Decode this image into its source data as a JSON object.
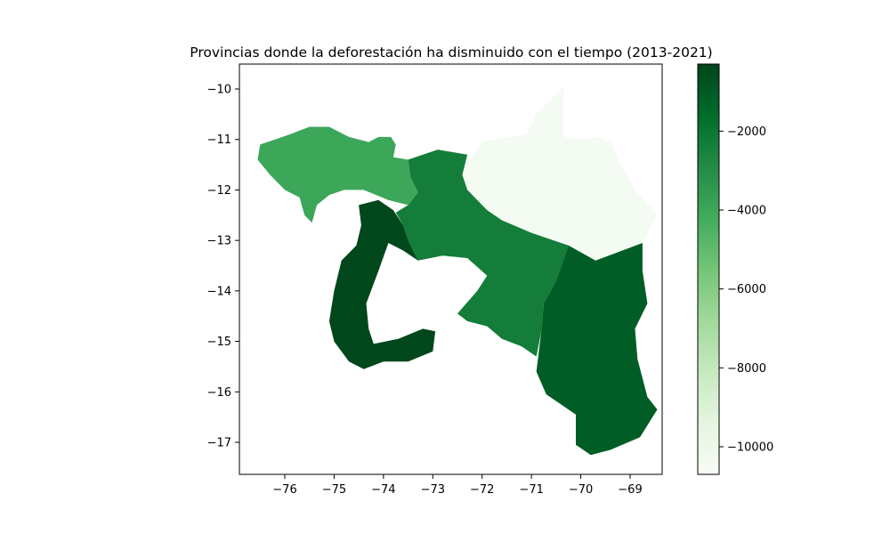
{
  "chart_data": {
    "type": "choropleth",
    "title": "Provincias donde la deforestación ha disminuido con el tiempo (2013-2021)",
    "xlabel": "",
    "ylabel": "",
    "x_ticks": [
      -76,
      -75,
      -74,
      -73,
      -72,
      -71,
      -70,
      -69
    ],
    "y_ticks": [
      -10,
      -11,
      -12,
      -13,
      -14,
      -15,
      -16,
      -17
    ],
    "x_range": [
      -76.9,
      -68.4
    ],
    "y_range": [
      -17.7,
      -9.5
    ],
    "x_tick_labels": [
      "−76",
      "−75",
      "−74",
      "−73",
      "−72",
      "−71",
      "−70",
      "−69"
    ],
    "y_tick_labels": [
      "−10",
      "−11",
      "−12",
      "−13",
      "−14",
      "−15",
      "−16",
      "−17"
    ],
    "colorbar": {
      "colormap": "Greens_r",
      "vmin": -10700,
      "vmax": -300,
      "ticks": [
        -2000,
        -4000,
        -6000,
        -8000,
        -10000
      ],
      "tick_labels": [
        "−2000",
        "−4000",
        "−6000",
        "−8000",
        "−10000"
      ]
    },
    "regions": [
      {
        "id": "region-northwest",
        "value": -4000,
        "outline": [
          [
            -76.5,
            -11.1
          ],
          [
            -76.2,
            -11.0
          ],
          [
            -75.9,
            -10.9
          ],
          [
            -75.5,
            -10.75
          ],
          [
            -75.1,
            -10.75
          ],
          [
            -74.7,
            -10.95
          ],
          [
            -74.3,
            -11.05
          ],
          [
            -74.1,
            -10.95
          ],
          [
            -73.85,
            -10.95
          ],
          [
            -73.75,
            -11.1
          ],
          [
            -73.8,
            -11.35
          ],
          [
            -73.5,
            -11.4
          ],
          [
            -73.45,
            -11.75
          ],
          [
            -73.3,
            -12.05
          ],
          [
            -73.5,
            -12.3
          ],
          [
            -73.9,
            -12.2
          ],
          [
            -74.4,
            -12.0
          ],
          [
            -74.8,
            -12.0
          ],
          [
            -75.1,
            -12.1
          ],
          [
            -75.35,
            -12.3
          ],
          [
            -75.45,
            -12.65
          ],
          [
            -75.6,
            -12.5
          ],
          [
            -75.7,
            -12.15
          ],
          [
            -76.0,
            -12.0
          ],
          [
            -76.3,
            -11.7
          ],
          [
            -76.55,
            -11.4
          ]
        ]
      },
      {
        "id": "region-east-north",
        "value": -10500,
        "outline": [
          [
            -72.0,
            -11.05
          ],
          [
            -71.1,
            -10.9
          ],
          [
            -70.9,
            -10.5
          ],
          [
            -70.5,
            -10.1
          ],
          [
            -70.35,
            -9.95
          ],
          [
            -70.35,
            -10.95
          ],
          [
            -70.05,
            -11.0
          ],
          [
            -69.7,
            -10.95
          ],
          [
            -69.4,
            -11.05
          ],
          [
            -69.2,
            -11.5
          ],
          [
            -68.9,
            -12.0
          ],
          [
            -68.45,
            -12.5
          ],
          [
            -68.75,
            -13.05
          ],
          [
            -69.7,
            -13.4
          ],
          [
            -70.25,
            -13.1
          ],
          [
            -71.0,
            -12.85
          ],
          [
            -71.6,
            -12.6
          ],
          [
            -71.9,
            -12.4
          ],
          [
            -72.3,
            -12.0
          ],
          [
            -72.4,
            -11.6
          ]
        ]
      },
      {
        "id": "region-central",
        "value": -2300,
        "outline": [
          [
            -73.5,
            -11.4
          ],
          [
            -72.9,
            -11.2
          ],
          [
            -72.3,
            -11.3
          ],
          [
            -72.4,
            -11.7
          ],
          [
            -72.3,
            -12.0
          ],
          [
            -71.9,
            -12.4
          ],
          [
            -71.6,
            -12.6
          ],
          [
            -71.0,
            -12.85
          ],
          [
            -70.25,
            -13.1
          ],
          [
            -70.5,
            -13.8
          ],
          [
            -70.75,
            -14.25
          ],
          [
            -70.8,
            -14.8
          ],
          [
            -70.9,
            -15.3
          ],
          [
            -71.2,
            -15.1
          ],
          [
            -71.6,
            -14.95
          ],
          [
            -71.9,
            -14.7
          ],
          [
            -72.3,
            -14.6
          ],
          [
            -72.5,
            -14.45
          ],
          [
            -72.1,
            -14.0
          ],
          [
            -71.9,
            -13.7
          ],
          [
            -72.3,
            -13.35
          ],
          [
            -72.8,
            -13.3
          ],
          [
            -73.3,
            -13.4
          ],
          [
            -73.5,
            -13.0
          ],
          [
            -73.6,
            -12.7
          ],
          [
            -73.75,
            -12.45
          ],
          [
            -73.5,
            -12.3
          ],
          [
            -73.3,
            -12.05
          ],
          [
            -73.45,
            -11.75
          ]
        ]
      },
      {
        "id": "region-southeast",
        "value": -1100,
        "outline": [
          [
            -70.25,
            -13.1
          ],
          [
            -69.7,
            -13.4
          ],
          [
            -68.75,
            -13.05
          ],
          [
            -68.75,
            -13.6
          ],
          [
            -68.65,
            -14.25
          ],
          [
            -68.9,
            -14.75
          ],
          [
            -68.85,
            -15.35
          ],
          [
            -68.65,
            -16.1
          ],
          [
            -68.45,
            -16.35
          ],
          [
            -68.8,
            -16.9
          ],
          [
            -69.4,
            -17.15
          ],
          [
            -69.8,
            -17.25
          ],
          [
            -70.1,
            -17.05
          ],
          [
            -70.1,
            -16.45
          ],
          [
            -70.7,
            -16.05
          ],
          [
            -70.9,
            -15.6
          ],
          [
            -70.8,
            -14.8
          ],
          [
            -70.75,
            -14.25
          ],
          [
            -70.5,
            -13.8
          ]
        ]
      },
      {
        "id": "region-southwest",
        "value": -400,
        "outline": [
          [
            -74.5,
            -12.3
          ],
          [
            -74.1,
            -12.2
          ],
          [
            -73.8,
            -12.4
          ],
          [
            -73.6,
            -12.7
          ],
          [
            -73.5,
            -13.0
          ],
          [
            -73.3,
            -13.4
          ],
          [
            -73.6,
            -13.2
          ],
          [
            -73.9,
            -13.05
          ],
          [
            -74.1,
            -13.6
          ],
          [
            -74.35,
            -14.25
          ],
          [
            -74.3,
            -14.75
          ],
          [
            -74.2,
            -15.05
          ],
          [
            -73.7,
            -14.95
          ],
          [
            -73.2,
            -14.75
          ],
          [
            -72.95,
            -14.8
          ],
          [
            -73.0,
            -15.2
          ],
          [
            -73.5,
            -15.4
          ],
          [
            -74.0,
            -15.4
          ],
          [
            -74.4,
            -15.55
          ],
          [
            -74.7,
            -15.4
          ],
          [
            -75.0,
            -15.0
          ],
          [
            -75.1,
            -14.6
          ],
          [
            -75.0,
            -14.0
          ],
          [
            -74.85,
            -13.4
          ],
          [
            -74.55,
            -13.1
          ],
          [
            -74.45,
            -12.7
          ]
        ]
      }
    ]
  }
}
